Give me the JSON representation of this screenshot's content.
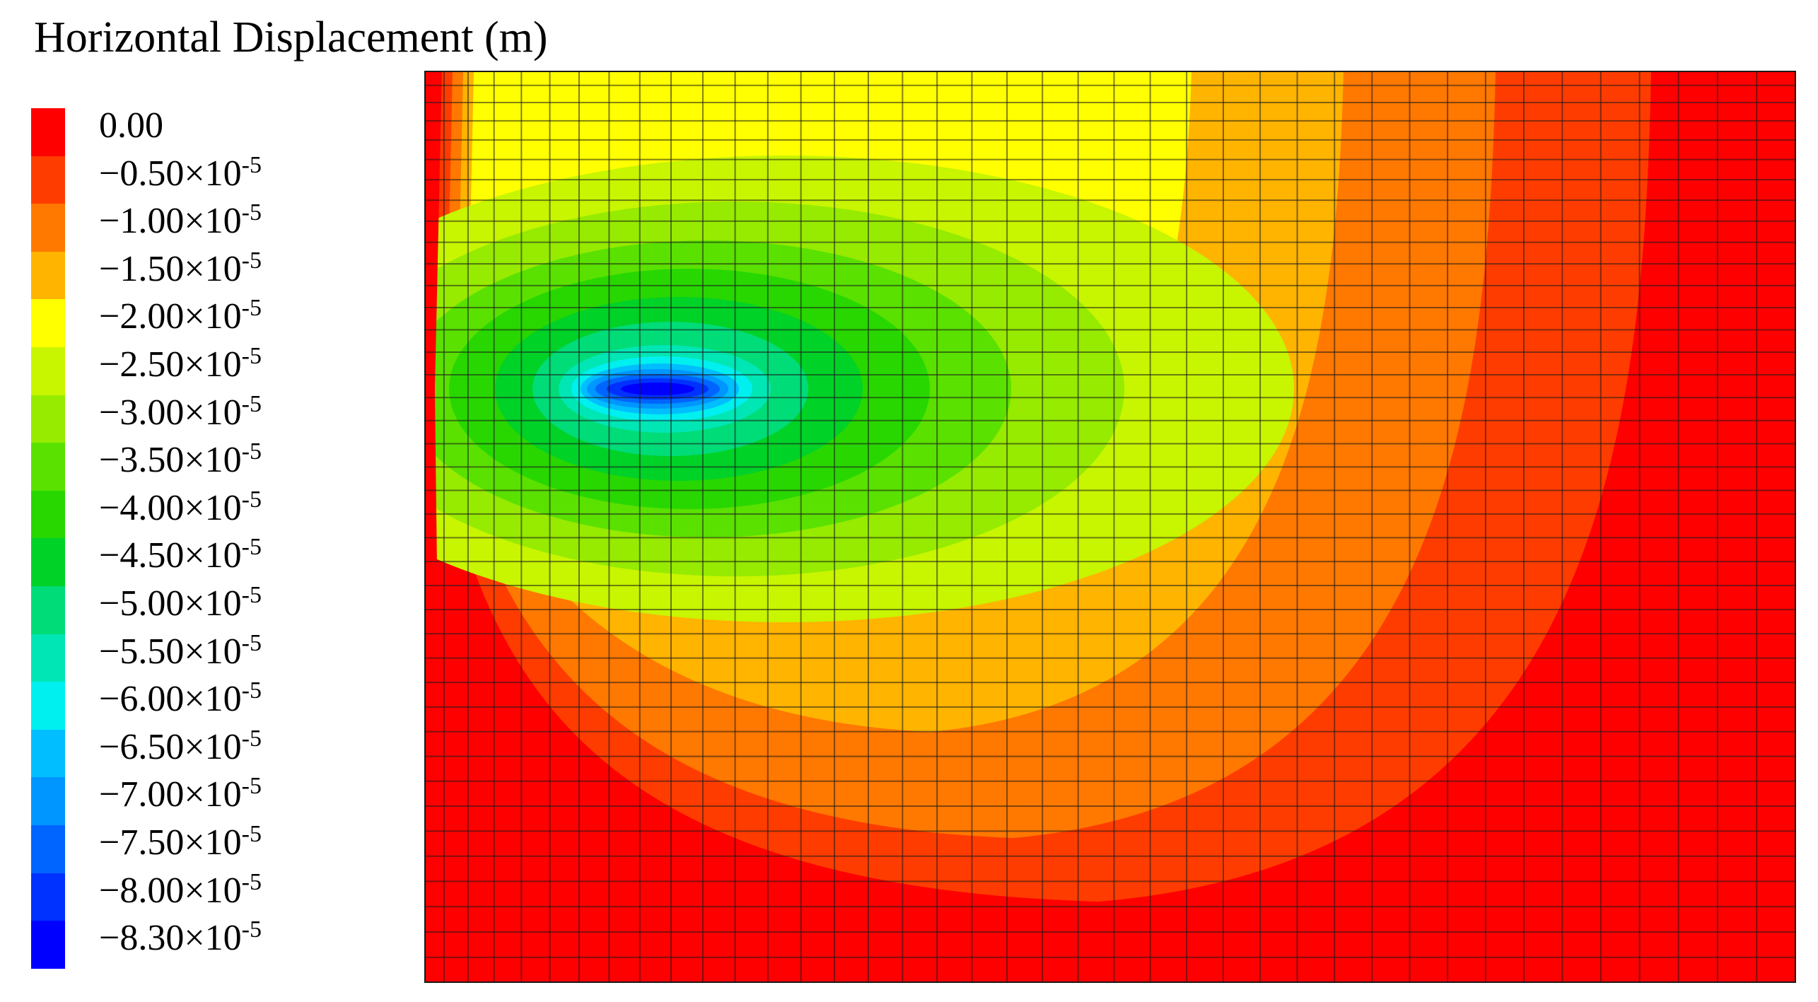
{
  "title": "Horizontal Displacement (m)",
  "chart_data": {
    "type": "heatmap",
    "title": "Horizontal Displacement (m)",
    "color_scale": [
      {
        "label": "0.00",
        "mant": "",
        "exp": "",
        "value": 0.0,
        "color": "#ff0000"
      },
      {
        "label": "−0.50×10",
        "mant": "−0.50×10",
        "exp": "-5",
        "value": -5e-06,
        "color": "#ff3c00"
      },
      {
        "label": "−1.00×10",
        "mant": "−1.00×10",
        "exp": "-5",
        "value": -1e-05,
        "color": "#ff7800"
      },
      {
        "label": "−1.50×10",
        "mant": "−1.50×10",
        "exp": "-5",
        "value": -1.5e-05,
        "color": "#ffb400"
      },
      {
        "label": "−2.00×10",
        "mant": "−2.00×10",
        "exp": "-5",
        "value": -2e-05,
        "color": "#ffff00"
      },
      {
        "label": "−2.50×10",
        "mant": "−2.50×10",
        "exp": "-5",
        "value": -2.5e-05,
        "color": "#c8f500"
      },
      {
        "label": "−3.00×10",
        "mant": "−3.00×10",
        "exp": "-5",
        "value": -3e-05,
        "color": "#96eb00"
      },
      {
        "label": "−3.50×10",
        "mant": "−3.50×10",
        "exp": "-5",
        "value": -3.5e-05,
        "color": "#5ae100"
      },
      {
        "label": "−4.00×10",
        "mant": "−4.00×10",
        "exp": "-5",
        "value": -4e-05,
        "color": "#28d700"
      },
      {
        "label": "−4.50×10",
        "mant": "−4.50×10",
        "exp": "-5",
        "value": -4.5e-05,
        "color": "#00d228"
      },
      {
        "label": "−5.00×10",
        "mant": "−5.00×10",
        "exp": "-5",
        "value": -5e-05,
        "color": "#00dc78"
      },
      {
        "label": "−5.50×10",
        "mant": "−5.50×10",
        "exp": "-5",
        "value": -5.5e-05,
        "color": "#00e6b4"
      },
      {
        "label": "−6.00×10",
        "mant": "−6.00×10",
        "exp": "-5",
        "value": -6e-05,
        "color": "#00f0f0"
      },
      {
        "label": "−6.50×10",
        "mant": "−6.50×10",
        "exp": "-5",
        "value": -6.5e-05,
        "color": "#00beff"
      },
      {
        "label": "−7.00×10",
        "mant": "−7.00×10",
        "exp": "-5",
        "value": -7e-05,
        "color": "#0096ff"
      },
      {
        "label": "−7.50×10",
        "mant": "−7.50×10",
        "exp": "-5",
        "value": -7.5e-05,
        "color": "#0064ff"
      },
      {
        "label": "−8.00×10",
        "mant": "−8.00×10",
        "exp": "-5",
        "value": -8e-05,
        "color": "#0032ff"
      },
      {
        "label": "−8.30×10",
        "mant": "−8.30×10",
        "exp": "-5",
        "value": -8.3e-05,
        "color": "#0000ff"
      }
    ],
    "field": {
      "peak_value": -8.3e-05,
      "peak_location": [
        0.17,
        0.35
      ],
      "boundary_value": 0.0
    },
    "mesh": {
      "columns": 40,
      "rows": 40
    }
  }
}
